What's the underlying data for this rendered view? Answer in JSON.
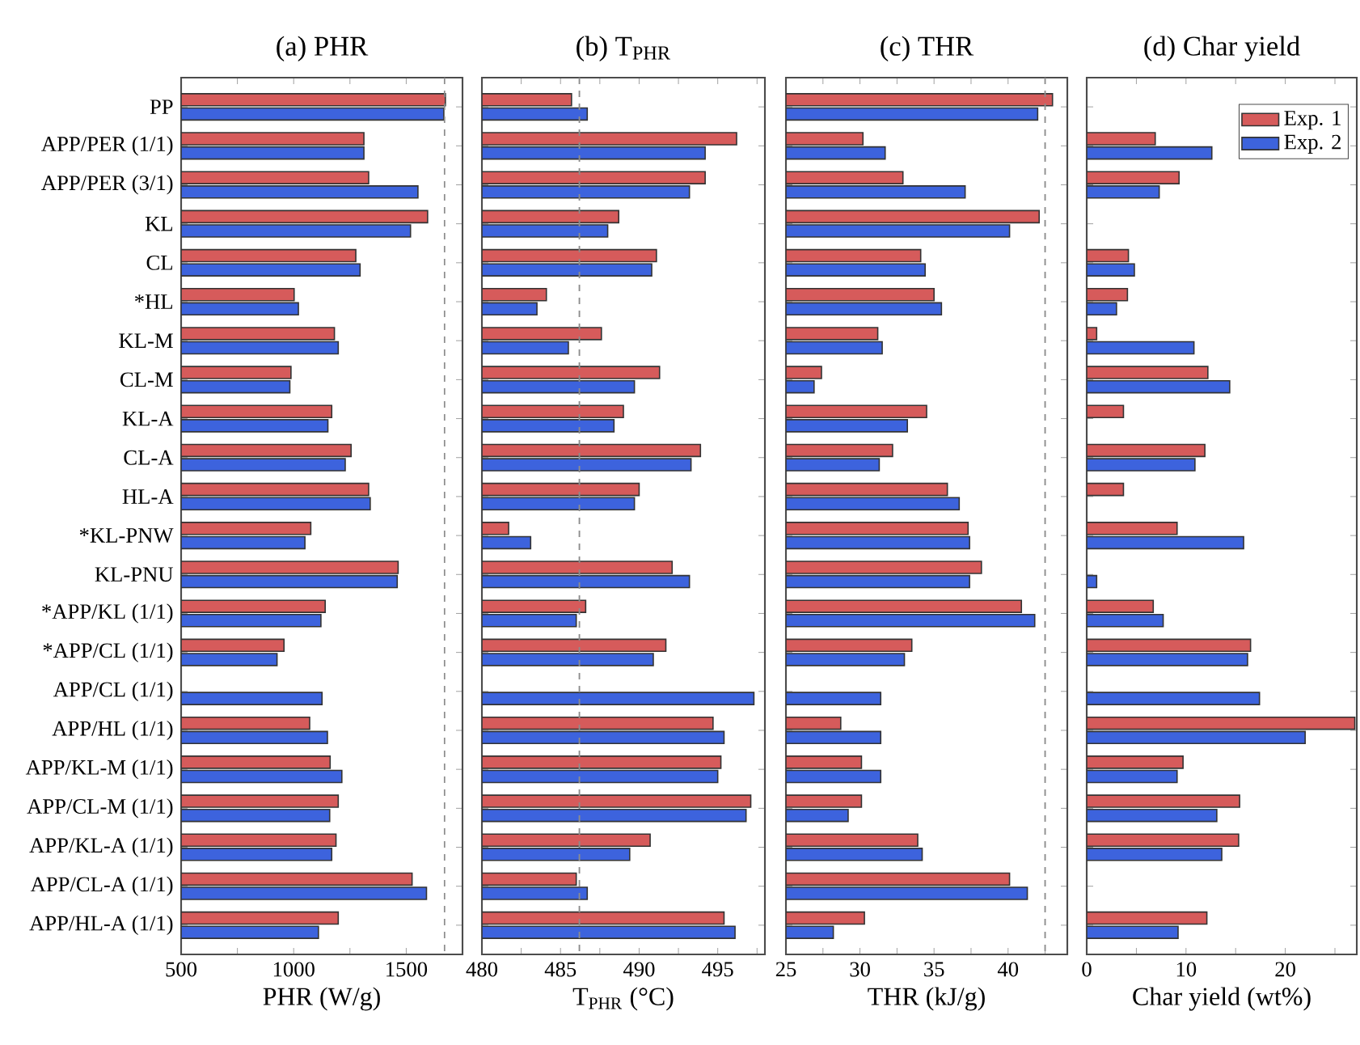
{
  "chart_data": [
    {
      "type": "bar",
      "orientation": "horizontal",
      "title": "(a) PHR",
      "xlabel": "PHR (W/g)",
      "categories": [
        "PP",
        "APP/PER (1/1)",
        "APP/PER (3/1)",
        "KL",
        "CL",
        "*HL",
        "KL-M",
        "CL-M",
        "KL-A",
        "CL-A",
        "HL-A",
        "*KL-PNW",
        "KL-PNU",
        "*APP/KL (1/1)",
        "*APP/CL (1/1)",
        "APP/CL (1/1)",
        "APP/HL (1/1)",
        "APP/KL-M (1/1)",
        "APP/CL-M (1/1)",
        "APP/KL-A (1/1)",
        "APP/CL-A (1/1)",
        "APP/HL-A (1/1)"
      ],
      "series": [
        {
          "color": "#d65b5b",
          "values": [
            1674,
            1312,
            1333,
            1595,
            1276,
            1002,
            1181,
            988,
            1169,
            1255,
            1333,
            1076,
            1464,
            1140,
            957,
            null,
            1071,
            1162,
            1198,
            1188,
            1526,
            1198
          ]
        },
        {
          "color": "#3d63dd",
          "values": [
            1667,
            1312,
            1552,
            1519,
            1295,
            1021,
            1198,
            983,
            1152,
            1229,
            1340,
            1050,
            1460,
            1121,
            926,
            1126,
            1150,
            1214,
            1160,
            1169,
            1590,
            1110
          ]
        }
      ],
      "xlim": [
        500,
        1750
      ],
      "xticks": [
        500,
        {
          "value": 750,
          "label": null
        },
        1000,
        {
          "value": 1250,
          "label": null
        },
        1500
      ],
      "ref_lines": [
        {
          "axis": "x",
          "value": 1670,
          "color": "#8c8c8c",
          "line_style": "dashed"
        }
      ]
    },
    {
      "type": "bar",
      "orientation": "horizontal",
      "title": "(b) T$_{PHR}$",
      "xlabel": "T$_{PHR}$ (°C)",
      "tick_labels": "x",
      "categories": [
        null,
        null,
        null,
        null,
        null,
        null,
        null,
        null,
        null,
        null,
        null,
        null,
        null,
        null,
        null,
        null,
        null,
        null,
        null,
        null,
        null,
        null
      ],
      "series": [
        {
          "color": "#d65b5b",
          "values": [
            485.7,
            496.2,
            494.2,
            488.7,
            491.1,
            484.1,
            487.6,
            491.3,
            489.0,
            493.9,
            490.0,
            481.7,
            492.1,
            486.6,
            491.7,
            null,
            494.7,
            495.2,
            497.1,
            490.7,
            486.0,
            495.4
          ]
        },
        {
          "color": "#3d63dd",
          "values": [
            486.7,
            494.2,
            493.2,
            488.0,
            490.8,
            483.5,
            485.5,
            489.7,
            488.4,
            493.3,
            489.7,
            483.1,
            493.2,
            486.0,
            490.9,
            497.3,
            495.4,
            495.0,
            496.8,
            489.4,
            486.7,
            496.1
          ]
        }
      ],
      "xlim": [
        480,
        498
      ],
      "xticks": [
        480,
        {
          "value": 482.5,
          "label": null
        },
        485,
        {
          "value": 487.5,
          "label": null
        },
        490,
        {
          "value": 492.5,
          "label": null
        },
        495,
        {
          "value": 497.5,
          "label": null
        }
      ],
      "ref_lines": [
        {
          "axis": "x",
          "value": 486.2,
          "color": "#8c8c8c",
          "line_style": "dashed"
        }
      ]
    },
    {
      "type": "bar",
      "orientation": "horizontal",
      "title": "(c) THR",
      "xlabel": "THR (kJ/g)",
      "tick_labels": "x",
      "categories": [
        null,
        null,
        null,
        null,
        null,
        null,
        null,
        null,
        null,
        null,
        null,
        null,
        null,
        null,
        null,
        null,
        null,
        null,
        null,
        null,
        null,
        null
      ],
      "series": [
        {
          "color": "#d65b5b",
          "values": [
            43.0,
            30.2,
            32.9,
            42.1,
            34.1,
            35.0,
            31.2,
            27.4,
            34.5,
            32.2,
            35.9,
            37.3,
            38.2,
            40.9,
            33.5,
            null,
            28.7,
            30.1,
            30.1,
            33.9,
            40.1,
            30.3
          ]
        },
        {
          "color": "#3d63dd",
          "values": [
            42.0,
            31.7,
            37.1,
            40.1,
            34.4,
            35.5,
            31.5,
            26.9,
            33.2,
            31.3,
            36.7,
            37.4,
            37.4,
            41.8,
            33.0,
            31.4,
            31.4,
            31.4,
            29.2,
            34.2,
            41.3,
            28.2
          ]
        }
      ],
      "xlim": [
        25,
        44
      ],
      "xticks": [
        25,
        {
          "value": 27.5,
          "label": null
        },
        30,
        {
          "value": 32.5,
          "label": null
        },
        35,
        {
          "value": 37.5,
          "label": null
        },
        40,
        {
          "value": 42.5,
          "label": null
        }
      ],
      "ref_lines": [
        {
          "axis": "x",
          "value": 42.5,
          "color": "#8c8c8c",
          "line_style": "dashed"
        }
      ]
    },
    {
      "type": "bar",
      "orientation": "horizontal",
      "title": "(d) Char yield",
      "xlabel": "Char yield (wt%)",
      "tick_labels": "x",
      "legend": "top right",
      "categories": [
        null,
        null,
        null,
        null,
        null,
        null,
        null,
        null,
        null,
        null,
        null,
        null,
        null,
        null,
        null,
        null,
        null,
        null,
        null,
        null,
        null,
        null
      ],
      "series": [
        {
          "name": "Exp. 1",
          "color": "#d65b5b",
          "values": [
            null,
            6.9,
            9.3,
            null,
            4.2,
            4.1,
            1.0,
            12.2,
            3.7,
            11.9,
            3.7,
            9.1,
            null,
            6.7,
            16.5,
            null,
            27.0,
            9.7,
            15.4,
            15.3,
            null,
            12.1
          ]
        },
        {
          "name": "Exp. 2",
          "color": "#3d63dd",
          "values": [
            null,
            12.6,
            7.3,
            null,
            4.8,
            3.0,
            10.8,
            14.4,
            null,
            10.9,
            null,
            15.8,
            1.0,
            7.7,
            16.2,
            17.4,
            22.0,
            9.1,
            13.1,
            13.6,
            null,
            9.2
          ]
        }
      ],
      "xlim": [
        0,
        27.2
      ],
      "xticks": [
        0,
        {
          "value": 5,
          "label": null
        },
        10,
        {
          "value": 15,
          "label": null
        },
        20,
        {
          "value": 25,
          "label": null
        }
      ]
    }
  ]
}
